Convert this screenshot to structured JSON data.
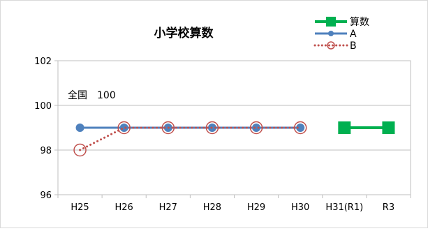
{
  "chart_data": {
    "type": "line",
    "title": "小学校算数",
    "xlabel": "",
    "ylabel": "",
    "categories": [
      "H25",
      "H26",
      "H27",
      "H28",
      "H29",
      "H30",
      "H31(R1)",
      "R3"
    ],
    "ylim": [
      96,
      102
    ],
    "yticks": [
      96,
      98,
      100,
      102
    ],
    "grid": true,
    "legend_position": "top-right",
    "annotation": "全国　100",
    "series": [
      {
        "name": "算数",
        "values": [
          null,
          null,
          null,
          null,
          null,
          null,
          99,
          99
        ],
        "color": "#00B050",
        "line_style": "solid",
        "marker": "square"
      },
      {
        "name": "A",
        "values": [
          99,
          99,
          99,
          99,
          99,
          99,
          null,
          null
        ],
        "color": "#4F81BD",
        "line_style": "solid",
        "marker": "circle"
      },
      {
        "name": "B",
        "values": [
          98,
          99,
          99,
          99,
          99,
          99,
          null,
          null
        ],
        "color": "#C0504D",
        "line_style": "dotted",
        "marker": "open-circle"
      }
    ]
  }
}
